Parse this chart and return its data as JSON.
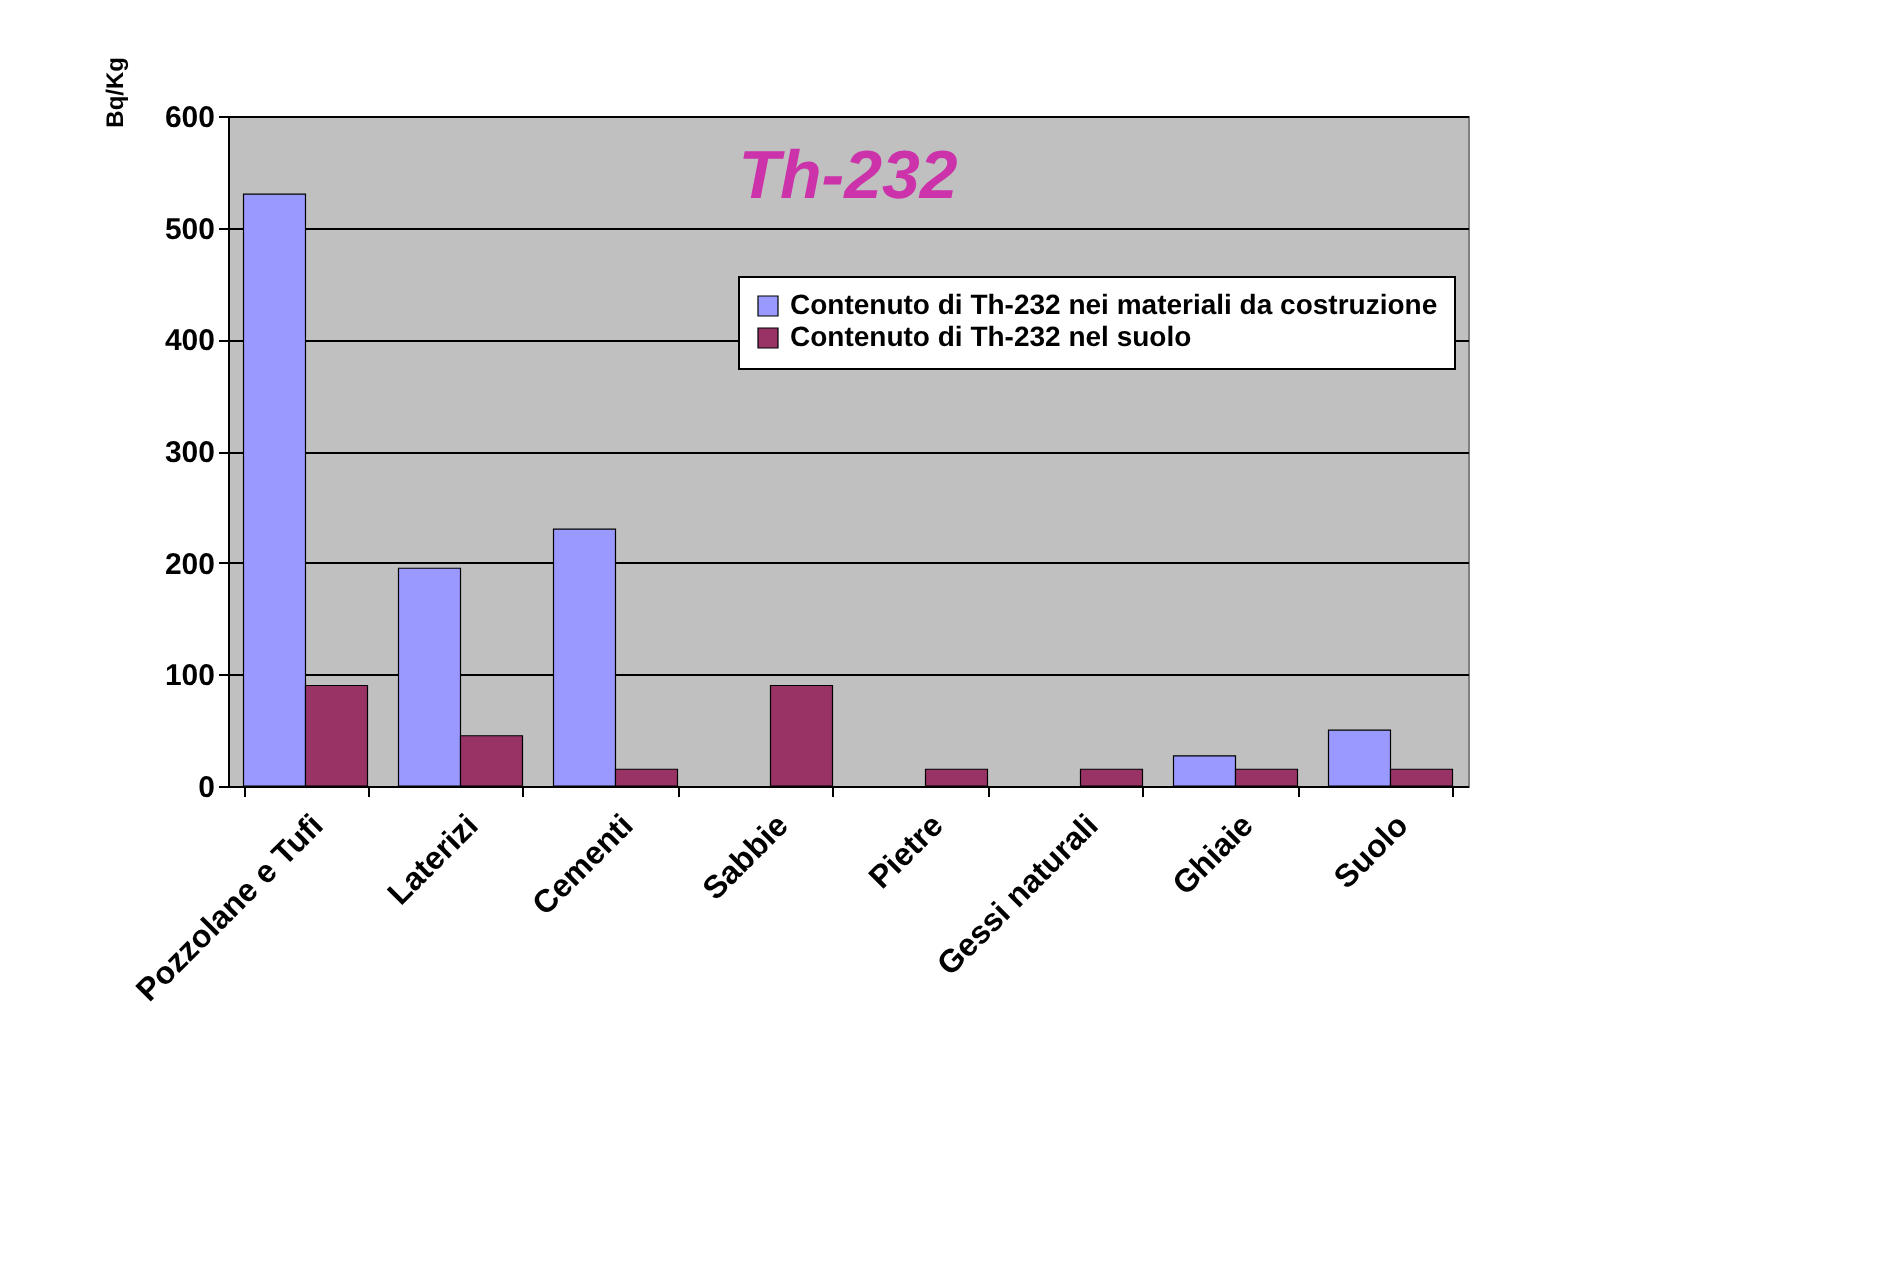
{
  "chart_data": {
    "type": "bar",
    "title": "Th-232",
    "ylabel": "Bq/Kg",
    "categories": [
      "Pozzolane e Tufi",
      "Laterizi",
      "Cementi",
      "Sabbie",
      "Pietre",
      "Gessi naturali",
      "Ghiaie",
      "Suolo"
    ],
    "series": [
      {
        "name": "Contenuto di Th-232 nei materiali da costruzione",
        "color": "#9999ff",
        "values": [
          530,
          195,
          230,
          null,
          null,
          null,
          27,
          50
        ]
      },
      {
        "name": "Contenuto di Th-232 nel suolo",
        "color": "#993366",
        "values": [
          90,
          45,
          15,
          90,
          15,
          15,
          15,
          15
        ]
      }
    ],
    "ylim": [
      0,
      600
    ],
    "yticks": [
      0,
      100,
      200,
      300,
      400,
      500,
      600
    ],
    "grid": "y",
    "legend": "top right"
  }
}
